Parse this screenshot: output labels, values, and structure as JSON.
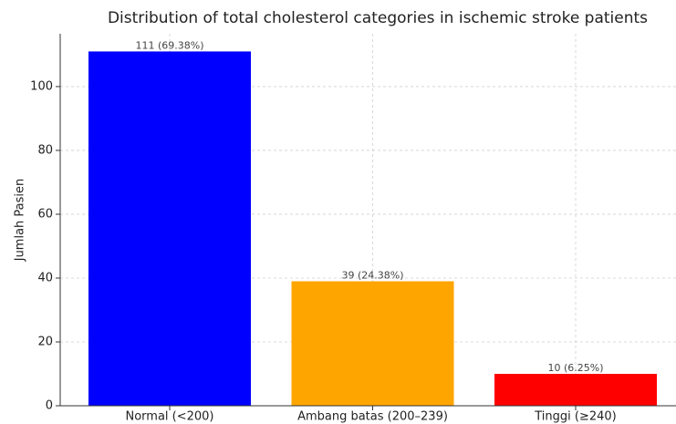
{
  "chart_data": {
    "type": "bar",
    "title": "Distribution of total cholesterol categories in ischemic stroke patients",
    "y_label": "Jumlah Pasien",
    "categories": [
      "Normal (<200)",
      "Ambang batas (200–239)",
      "Tinggi (≥240)"
    ],
    "values": [
      111,
      39,
      10
    ],
    "value_labels": [
      "111 (69.38%)",
      "39 (24.38%)",
      "10 (6.25%)"
    ],
    "colors": [
      "#0000ff",
      "#ffa500",
      "#ff0000"
    ],
    "ylim": [
      0,
      116.55
    ],
    "yticks": [
      0,
      20,
      40,
      60,
      80,
      100
    ],
    "grid": true
  }
}
